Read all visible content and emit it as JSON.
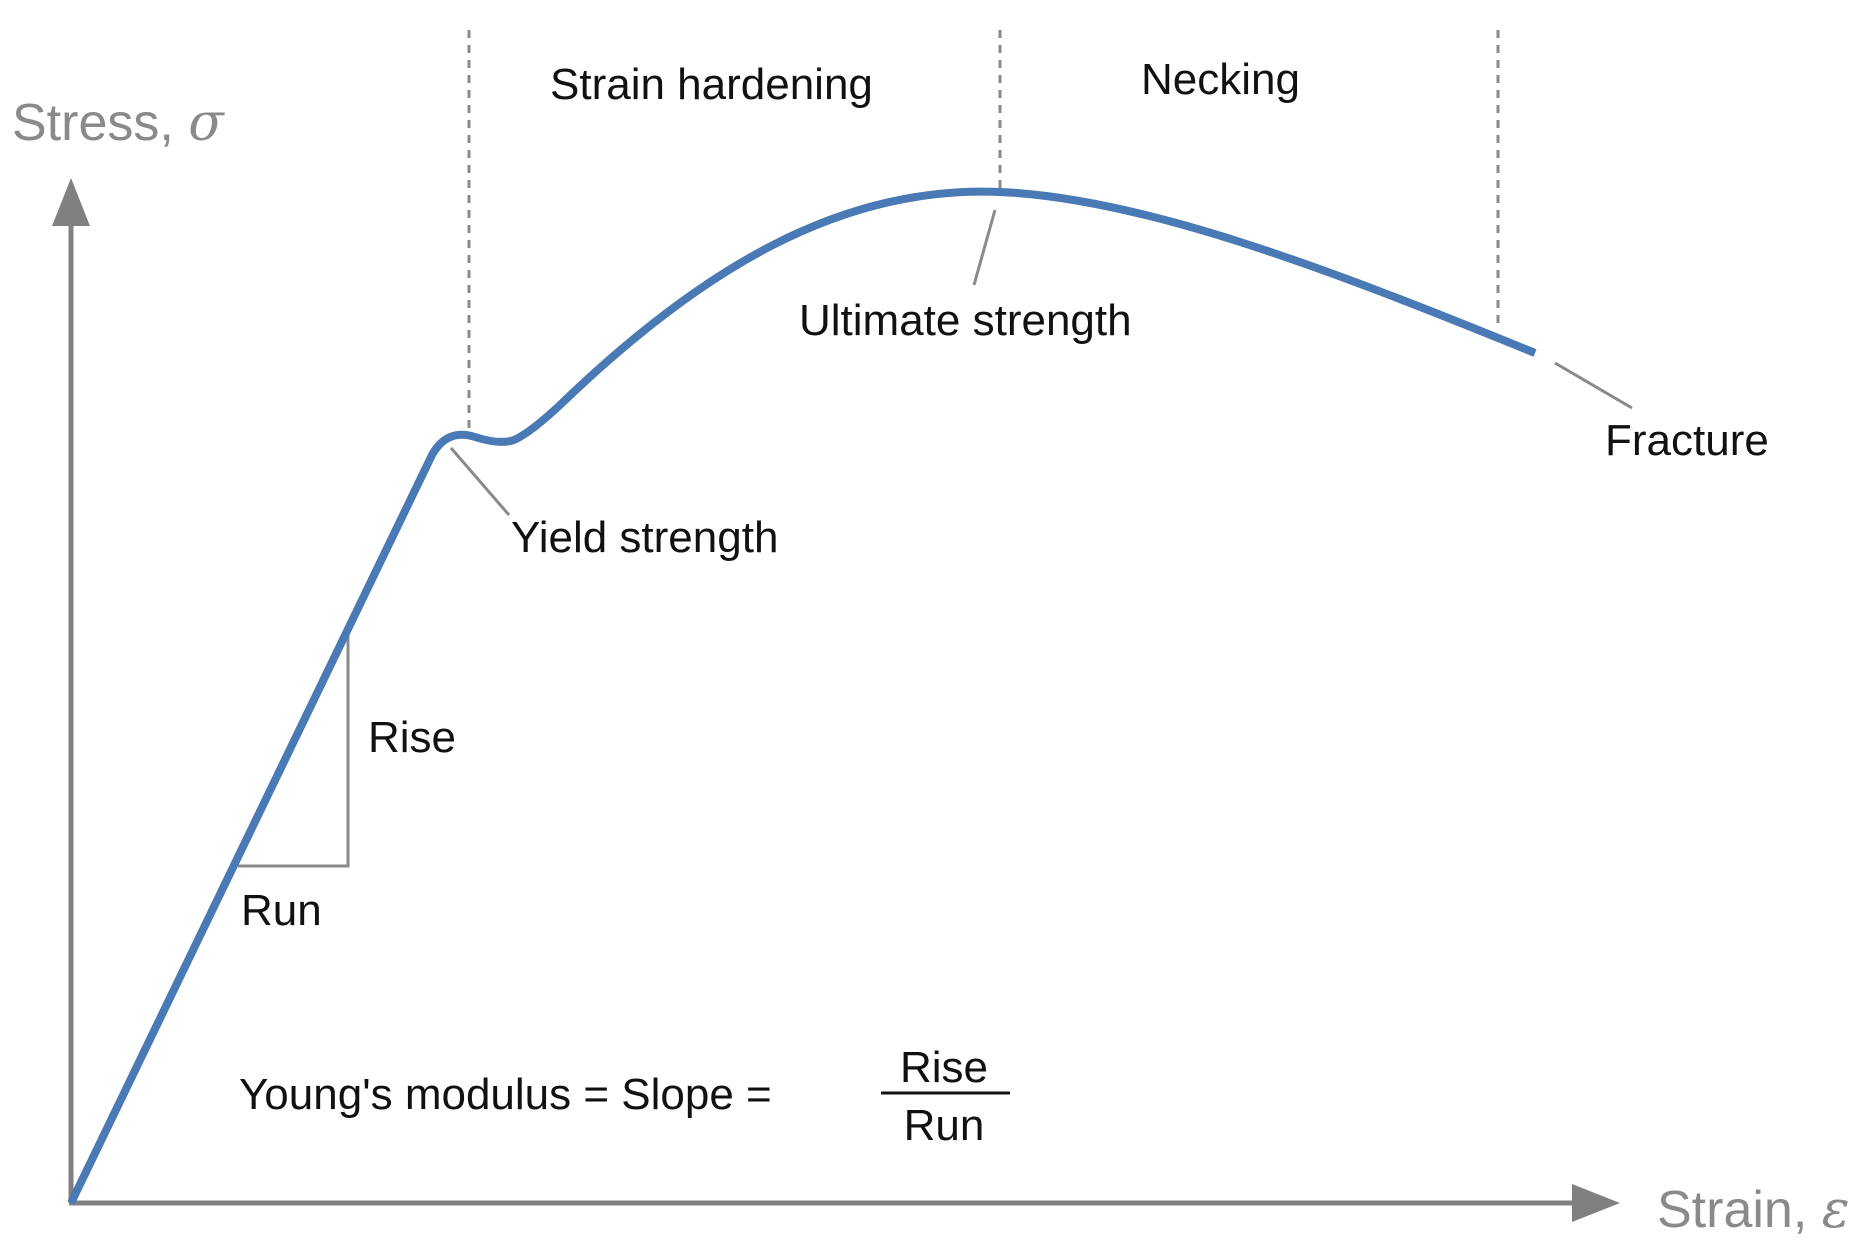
{
  "axes": {
    "y_label": "Stress, ",
    "y_symbol": "σ",
    "x_label": "Strain, ",
    "x_symbol": "ε"
  },
  "regions": {
    "strain_hardening": "Strain hardening",
    "necking": "Necking"
  },
  "annotations": {
    "yield_strength": "Yield strength",
    "ultimate_strength": "Ultimate strength",
    "fracture": "Fracture",
    "rise": "Rise",
    "run": "Run"
  },
  "formula": {
    "lhs": "Young's modulus = Slope =",
    "numerator": "Rise",
    "denominator": "Run"
  },
  "colors": {
    "curve": "#4a7ab5",
    "axis": "#808080",
    "axis_text": "#8a8a8a",
    "guide": "#8a8a8a",
    "text": "#111111"
  }
}
